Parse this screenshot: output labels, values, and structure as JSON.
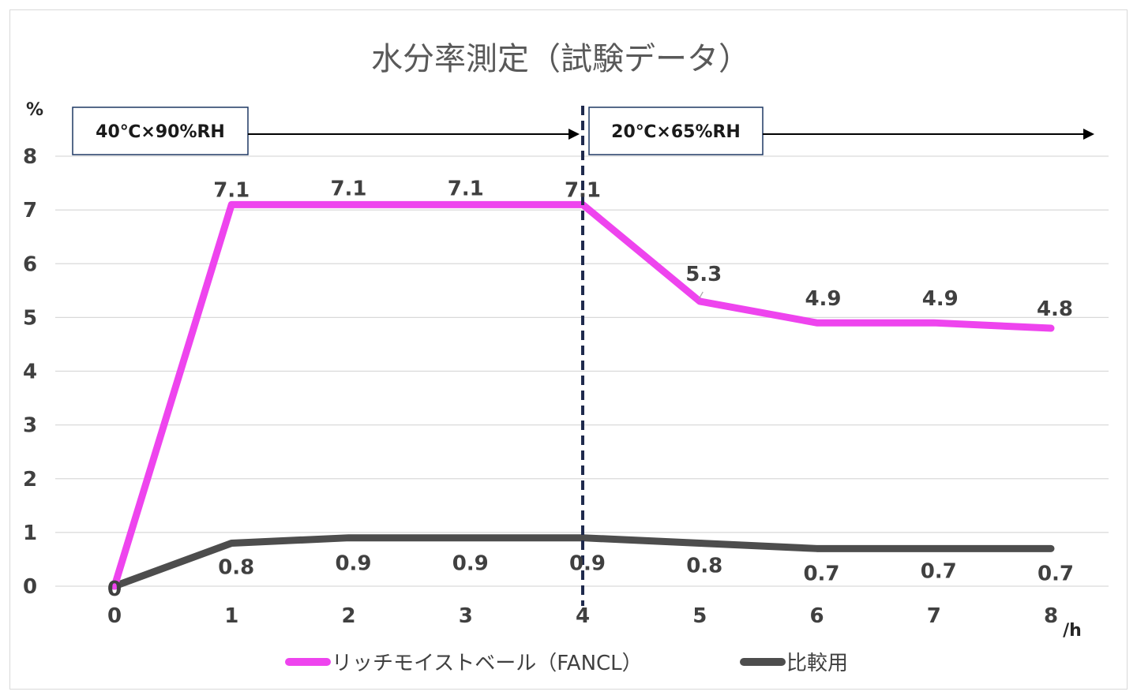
{
  "chart_data": {
    "type": "line",
    "title": "水分率測定（試験データ）",
    "ylabel": "%",
    "xlabel": "/h",
    "x": [
      0,
      1,
      2,
      3,
      4,
      5,
      6,
      7,
      8
    ],
    "ylim": [
      0,
      8
    ],
    "yticks": [
      0,
      1,
      2,
      3,
      4,
      5,
      6,
      7,
      8
    ],
    "grid": true,
    "legend_position": "bottom",
    "series": [
      {
        "name": "リッチモイストベール（FANCL）",
        "color": "#ee44ee",
        "values": [
          0,
          7.1,
          7.1,
          7.1,
          7.1,
          5.3,
          4.9,
          4.9,
          4.8
        ],
        "labels": [
          "0",
          "7.1",
          "7.1",
          "7.1",
          "7.1",
          "5.3",
          "4.9",
          "4.9",
          "4.8"
        ]
      },
      {
        "name": "比較用",
        "color": "#4d4d4d",
        "values": [
          0,
          0.8,
          0.9,
          0.9,
          0.9,
          0.8,
          0.7,
          0.7,
          0.7
        ],
        "labels": [
          "0",
          "0.8",
          "0.9",
          "0.9",
          "0.9",
          "0.8",
          "0.7",
          "0.7",
          "0.7"
        ]
      }
    ],
    "annotations": {
      "divider_x": 4,
      "phase1": "40℃×90%RH",
      "phase2": "20℃×65%RH"
    }
  }
}
